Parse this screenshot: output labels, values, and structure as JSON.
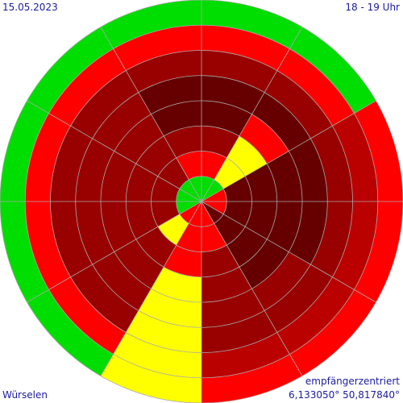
{
  "labels": {
    "date": "15.05.2023",
    "time": "18 - 19 Uhr",
    "location": "Würselen",
    "mode": "empfängerzentriert",
    "coords": "6,133050° 50,817840°"
  },
  "chart_data": {
    "type": "polar-sector-heatmap",
    "sectors": 12,
    "sector_angle_deg": 30,
    "sector_order": "clockwise from north (top)",
    "rings": 8,
    "colors": {
      "green": "#00dd00",
      "yellow": "#ffff00",
      "red": "#ff0000",
      "dark_red": "#bb0000",
      "darker_red": "#990000",
      "darkest_red": "#660000"
    },
    "grid": true,
    "cells": [
      [
        "green",
        "red",
        "darker_red",
        "darkest_red",
        "darkest_red",
        "darker_red",
        "red",
        "green"
      ],
      [
        "green",
        "yellow",
        "yellow",
        "red",
        "darkest_red",
        "darker_red",
        "red",
        "green"
      ],
      [
        "red",
        "darkest_red",
        "darkest_red",
        "darkest_red",
        "darkest_red",
        "darker_red",
        "dark_red",
        "red"
      ],
      [
        "red",
        "darkest_red",
        "darkest_red",
        "darkest_red",
        "darkest_red",
        "darker_red",
        "dark_red",
        "red"
      ],
      [
        "darkest_red",
        "darkest_red",
        "darkest_red",
        "darkest_red",
        "darker_red",
        "darker_red",
        "dark_red",
        "red"
      ],
      [
        "red",
        "red",
        "darker_red",
        "darker_red",
        "darker_red",
        "darker_red",
        "dark_red",
        "red"
      ],
      [
        "red",
        "red",
        "red",
        "yellow",
        "yellow",
        "yellow",
        "yellow",
        "yellow"
      ],
      [
        "red",
        "yellow",
        "darker_red",
        "darker_red",
        "darker_red",
        "darker_red",
        "red",
        "green"
      ],
      [
        "green",
        "darker_red",
        "darker_red",
        "darker_red",
        "darker_red",
        "darker_red",
        "red",
        "green"
      ],
      [
        "green",
        "darker_red",
        "darker_red",
        "darker_red",
        "darker_red",
        "darker_red",
        "red",
        "green"
      ],
      [
        "green",
        "darker_red",
        "darker_red",
        "darker_red",
        "darker_red",
        "darker_red",
        "red",
        "green"
      ],
      [
        "green",
        "red",
        "darker_red",
        "darkest_red",
        "darkest_red",
        "darker_red",
        "red",
        "green"
      ]
    ]
  }
}
